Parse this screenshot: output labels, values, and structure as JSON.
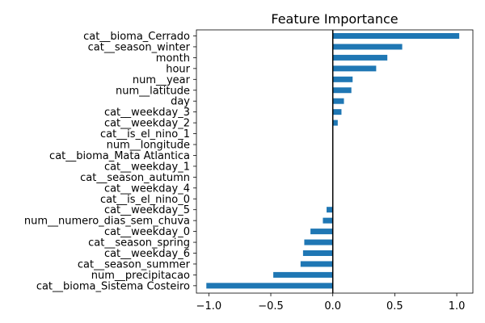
{
  "chart_data": {
    "type": "bar",
    "orientation": "horizontal",
    "title": "Feature Importance",
    "xlabel": "",
    "ylabel": "",
    "xlim": [
      -1.1,
      1.13
    ],
    "xticks": [
      -1.0,
      -0.5,
      0.0,
      0.5,
      1.0
    ],
    "xtick_labels": [
      "−1.0",
      "−0.5",
      "0.0",
      "0.5",
      "1.0"
    ],
    "grid": false,
    "legend": "none",
    "bar_color": "#1f77b4",
    "zero_line_color": "#000000",
    "categories": [
      "cat__bioma_Cerrado",
      "cat__season_winter",
      "month",
      "hour",
      "num__year",
      "num__latitude",
      "day",
      "cat__weekday_3",
      "cat__weekday_2",
      "cat__is_el_nino_1",
      "num__longitude",
      "cat__bioma_Mata Atlantica",
      "cat__weekday_1",
      "cat__season_autumn",
      "cat__weekday_4",
      "cat__is_el_nino_0",
      "cat__weekday_5",
      "num__numero_dias_sem_chuva",
      "cat__weekday_0",
      "cat__season_spring",
      "cat__weekday_6",
      "cat__season_summer",
      "num__precipitacao",
      "cat__bioma_Sistema Costeiro"
    ],
    "values": [
      1.02,
      0.56,
      0.44,
      0.35,
      0.16,
      0.15,
      0.09,
      0.07,
      0.04,
      0.0,
      0.0,
      0.0,
      0.0,
      0.0,
      0.0,
      0.0,
      -0.05,
      -0.08,
      -0.18,
      -0.23,
      -0.24,
      -0.26,
      -0.48,
      -1.02
    ]
  }
}
